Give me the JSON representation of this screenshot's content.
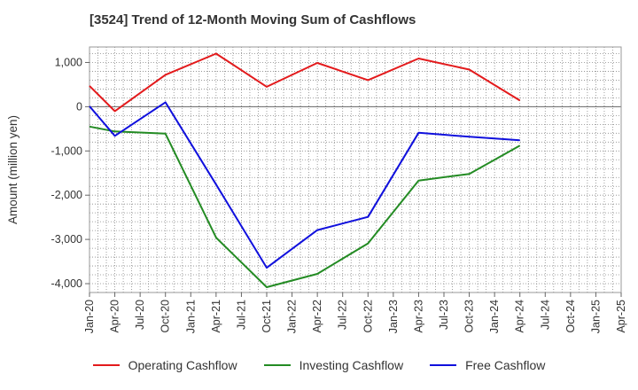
{
  "chart_data": {
    "type": "line",
    "title": "[3524]  Trend of 12-Month Moving Sum of Cashflows",
    "xlabel": "",
    "ylabel": "Amount (million yen)",
    "ylim": [
      -4200,
      1350
    ],
    "yticks": [
      1000,
      0,
      -1000,
      -2000,
      -3000,
      -4000
    ],
    "ytick_labels": [
      "1,000",
      "0",
      "-1,000",
      "-2,000",
      "-3,000",
      "-4,000"
    ],
    "x_tick_labels": [
      "Jan-20",
      "Apr-20",
      "Jul-20",
      "Oct-20",
      "Jan-21",
      "Apr-21",
      "Jul-21",
      "Oct-21",
      "Jan-22",
      "Apr-22",
      "Jul-22",
      "Oct-22",
      "Jan-23",
      "Apr-23",
      "Jul-23",
      "Oct-23",
      "Jan-24",
      "Apr-24",
      "Jul-24",
      "Oct-24",
      "Jan-25",
      "Apr-25"
    ],
    "grid": true,
    "legend_position": "bottom",
    "series": [
      {
        "name": "Operating Cashflow",
        "color": "#e31a1c",
        "x": [
          "Jan-20",
          "Apr-20",
          "Oct-20",
          "Apr-21",
          "Oct-21",
          "Apr-22",
          "Oct-22",
          "Apr-23",
          "Oct-23",
          "Apr-24"
        ],
        "values": [
          470,
          -100,
          720,
          1200,
          450,
          990,
          600,
          1090,
          840,
          140
        ]
      },
      {
        "name": "Investing Cashflow",
        "color": "#238b23",
        "x": [
          "Jan-20",
          "Apr-20",
          "Oct-20",
          "Apr-21",
          "Oct-21",
          "Apr-22",
          "Oct-22",
          "Apr-23",
          "Oct-23",
          "Apr-24"
        ],
        "values": [
          -450,
          -560,
          -610,
          -2960,
          -4080,
          -3780,
          -3090,
          -1670,
          -1520,
          -880
        ]
      },
      {
        "name": "Free Cashflow",
        "color": "#1010dd",
        "x": [
          "Jan-20",
          "Apr-20",
          "Oct-20",
          "Apr-21",
          "Oct-21",
          "Apr-22",
          "Oct-22",
          "Apr-23",
          "Oct-23",
          "Apr-24"
        ],
        "values": [
          10,
          -660,
          100,
          -1760,
          -3640,
          -2790,
          -2490,
          -590,
          -680,
          -760
        ]
      }
    ]
  }
}
